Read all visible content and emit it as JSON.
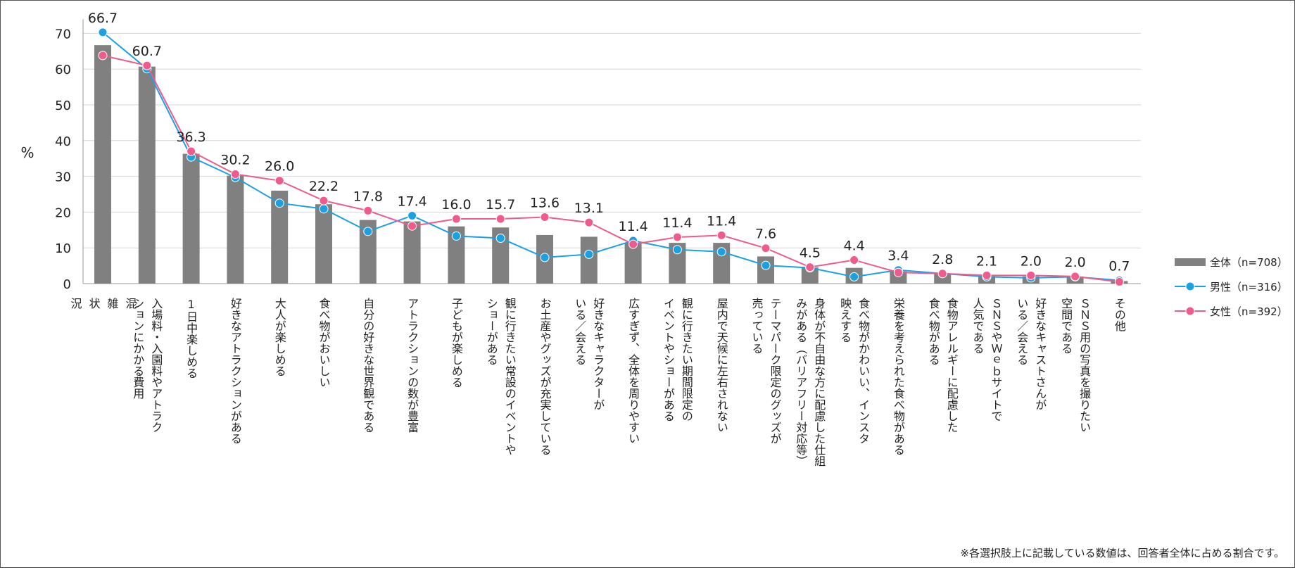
{
  "chart_data": {
    "type": "bar+line",
    "ylabel": "%",
    "ylim": [
      0,
      70
    ],
    "yticks": [
      0,
      10,
      20,
      30,
      40,
      50,
      60,
      70
    ],
    "grid": true,
    "legend_position": "right",
    "categories": [
      [
        "混",
        "雑",
        "状",
        "況"
      ],
      [
        "入場料・入園料やアトラク",
        "ションにかかる費用"
      ],
      [
        "1日中楽しめる"
      ],
      [
        "好きなアトラクションがある"
      ],
      [
        "大人が楽しめる"
      ],
      [
        "食べ物がおいしい"
      ],
      [
        "自分の好きな世界観である"
      ],
      [
        "アトラクションの数が豊富"
      ],
      [
        "子どもが楽しめる"
      ],
      [
        "観に行きたい常設のイベントや",
        "ショーがある"
      ],
      [
        "お土産やグッズが充実している"
      ],
      [
        "好きなキャラクターが",
        "いる／会える"
      ],
      [
        "広すぎず、全体を周りやすい"
      ],
      [
        "観に行きたい期間限定の",
        "イベントやショーがある"
      ],
      [
        "屋内で天候に左右されない"
      ],
      [
        "テーマパーク限定のグッズが",
        "売っている"
      ],
      [
        "身体が不自由な方に配慮した仕組",
        "みがある（バリアフリー対応等）"
      ],
      [
        "食べ物がかわいい、インスタ",
        "映えする"
      ],
      [
        "栄養を考えられた食べ物がある"
      ],
      [
        "食物アレルギーに配慮した",
        "食べ物がある"
      ],
      [
        "ＳＮＳやＷｅｂサイトで",
        "人気である"
      ],
      [
        "好きなキャストさんが",
        "いる／会える"
      ],
      [
        "ＳＮＳ用の写真を撮りたい",
        "空間である"
      ],
      [
        "その他"
      ]
    ],
    "series": [
      {
        "name": "全体（n=708）",
        "type": "bar",
        "color": "#808080",
        "values": [
          66.7,
          60.7,
          36.3,
          30.2,
          26.0,
          22.2,
          17.8,
          17.4,
          16.0,
          15.7,
          13.6,
          13.1,
          11.4,
          11.4,
          11.4,
          7.6,
          4.5,
          4.4,
          3.4,
          2.8,
          2.1,
          2.0,
          2.0,
          0.7
        ],
        "labels": [
          "66.7",
          "60.7",
          "36.3",
          "30.2",
          "26.0",
          "22.2",
          "17.8",
          "17.4",
          "16.0",
          "15.7",
          "13.6",
          "13.1",
          "11.4",
          "11.4",
          "11.4",
          "7.6",
          "4.5",
          "4.4",
          "3.4",
          "2.8",
          "2.1",
          "2.0",
          "2.0",
          "0.7"
        ]
      },
      {
        "name": "男性（n=316）",
        "type": "line",
        "color": "#1ba1e2",
        "values": [
          70.3,
          60.1,
          35.4,
          29.7,
          22.5,
          20.9,
          14.6,
          19.0,
          13.3,
          12.7,
          7.3,
          8.2,
          12.0,
          9.5,
          8.9,
          5.1,
          4.4,
          1.9,
          3.8,
          2.8,
          1.9,
          1.6,
          1.9,
          0.9
        ]
      },
      {
        "name": "女性（n=392）",
        "type": "line",
        "color": "#ef5b8c",
        "values": [
          63.8,
          61.0,
          37.0,
          30.6,
          28.8,
          23.2,
          20.4,
          16.1,
          18.1,
          18.1,
          18.6,
          17.1,
          11.0,
          13.0,
          13.5,
          9.9,
          4.6,
          6.6,
          3.1,
          2.8,
          2.3,
          2.3,
          2.0,
          0.5
        ]
      }
    ],
    "note": "※各選択肢上に記載している数値は、回答者全体に占める割合です。"
  }
}
